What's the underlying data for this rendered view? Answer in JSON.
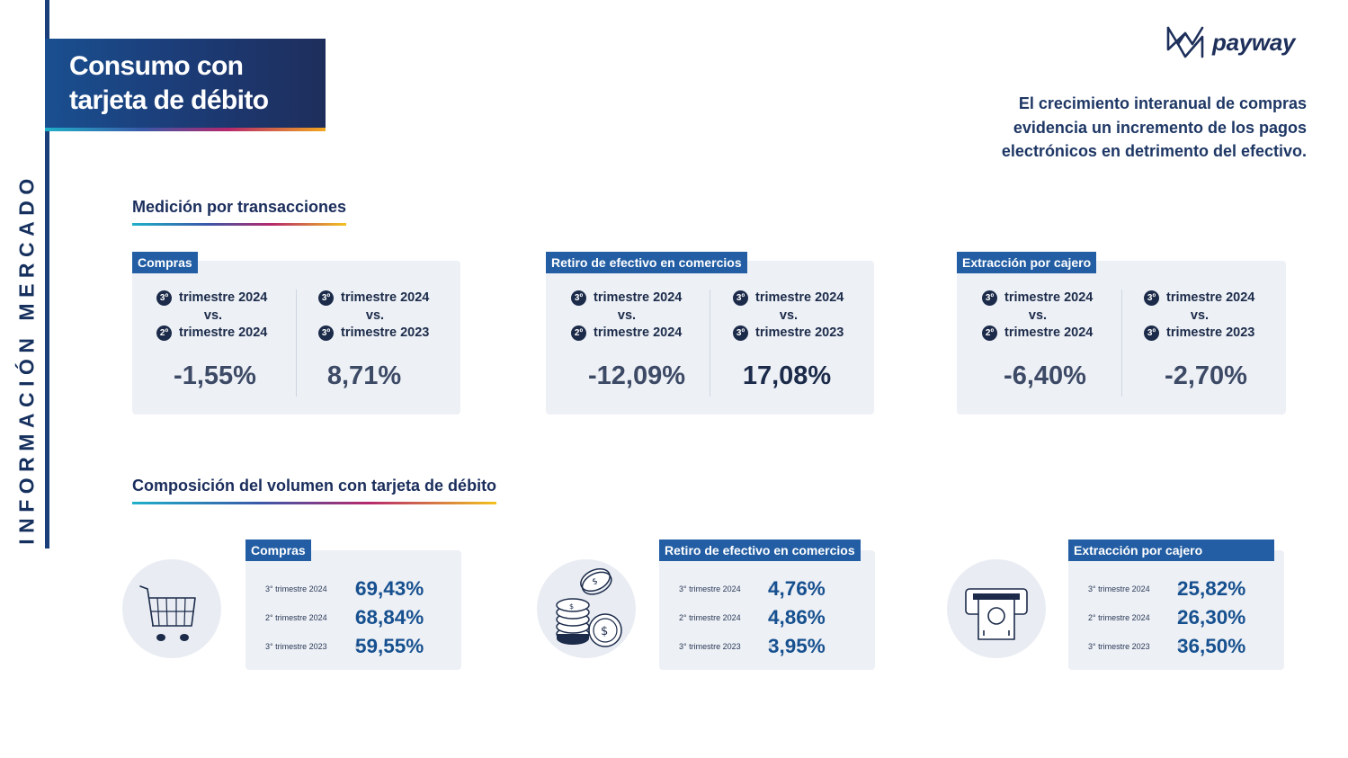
{
  "side_label": "INFORMACIÓN MERCADO",
  "title": {
    "line1": "Consumo con",
    "line2": "tarjeta de débito"
  },
  "logo": {
    "text": "payway",
    "icon": "payway-logo-icon"
  },
  "intro": {
    "line1": "El crecimiento interanual de compras",
    "line2": "evidencia un incremento de los pagos",
    "line3": "electrónicos en detrimento del efectivo."
  },
  "section1": {
    "title": "Medición por transacciones",
    "cards": [
      {
        "tag": "Compras",
        "comparisons": [
          {
            "top_badge": "3º",
            "top_text": "trimestre 2024",
            "vs": "vs.",
            "bottom_badge": "2º",
            "bottom_text": "trimestre 2024",
            "value": "-1,55%"
          },
          {
            "top_badge": "3º",
            "top_text": "trimestre 2024",
            "vs": "vs.",
            "bottom_badge": "3º",
            "bottom_text": "trimestre 2023",
            "value": "8,71%"
          }
        ]
      },
      {
        "tag": "Retiro de efectivo en comercios",
        "comparisons": [
          {
            "top_badge": "3º",
            "top_text": "trimestre 2024",
            "vs": "vs.",
            "bottom_badge": "2º",
            "bottom_text": "trimestre 2024",
            "value": "-12,09%"
          },
          {
            "top_badge": "3º",
            "top_text": "trimestre 2024",
            "vs": "vs.",
            "bottom_badge": "3º",
            "bottom_text": "trimestre 2023",
            "value": "17,08%"
          }
        ]
      },
      {
        "tag": "Extracción por cajero",
        "comparisons": [
          {
            "top_badge": "3º",
            "top_text": "trimestre 2024",
            "vs": "vs.",
            "bottom_badge": "2º",
            "bottom_text": "trimestre 2024",
            "value": "-6,40%"
          },
          {
            "top_badge": "3º",
            "top_text": "trimestre 2024",
            "vs": "vs.",
            "bottom_badge": "3º",
            "bottom_text": "trimestre 2023",
            "value": "-2,70%"
          }
        ]
      }
    ]
  },
  "section2": {
    "title": "Composición del volumen con tarjeta de débito",
    "cards": [
      {
        "tag": "Compras",
        "icon": "shopping-cart-icon",
        "rows": [
          {
            "label": "3° trimestre 2024",
            "value": "69,43%"
          },
          {
            "label": "2° trimestre 2024",
            "value": "68,84%"
          },
          {
            "label": "3° trimestre 2023",
            "value": "59,55%"
          }
        ]
      },
      {
        "tag": "Retiro de efectivo en comercios",
        "icon": "coins-icon",
        "rows": [
          {
            "label": "3° trimestre 2024",
            "value": "4,76%"
          },
          {
            "label": "2° trimestre 2024",
            "value": "4,86%"
          },
          {
            "label": "3° trimestre 2023",
            "value": "3,95%"
          }
        ]
      },
      {
        "tag": "Extracción por cajero",
        "icon": "atm-icon",
        "rows": [
          {
            "label": "3° trimestre 2024",
            "value": "25,82%"
          },
          {
            "label": "2° trimestre 2024",
            "value": "26,30%"
          },
          {
            "label": "3° trimestre 2023",
            "value": "36,50%"
          }
        ]
      }
    ]
  },
  "colors": {
    "brand_dark": "#1c2b4a",
    "tag_blue": "#235ea4",
    "value_blue": "#16508f",
    "card_bg": "#edf0f5"
  }
}
